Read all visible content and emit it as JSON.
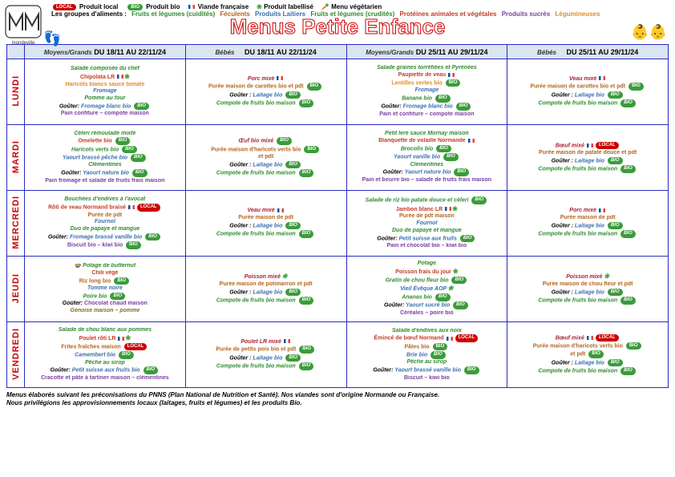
{
  "legend": {
    "local": "Produit local",
    "bio": "Produit bio",
    "viande": "Viande française",
    "labellise": "Produit labellisé",
    "vege": "Menu végétarien",
    "groups_label": "Les groupes d'aliments :",
    "g1": "Fruits et légumes (cuidités)",
    "g2": "Féculents",
    "g3": "Produits Laitiers",
    "g4": "Fruits et légumes (crudités)",
    "g5": "Protéines animales et végétales",
    "g6": "Produits sucrés",
    "g7": "Légumineuses"
  },
  "title": "Menus Petite Enfance",
  "colors": {
    "border": "#2a2ac0",
    "header_bg": "#dbe5f1",
    "day_text": "#c00",
    "grp1": "#2e8b2e",
    "grp2": "#b5651d",
    "grp3": "#3a6fb0",
    "grp4": "#2e8b2e",
    "grp5": "#c43b24",
    "grp6": "#7b3fa0",
    "grp7": "#e08a2c"
  },
  "headers": {
    "mg1": "Moyens/Grands",
    "d1": "DU 18/11 AU 22/11/24",
    "b1": "Bébés",
    "d2": "DU 18/11 AU 22/11/24",
    "mg2": "Moyens/Grands",
    "d3": "DU 25/11 AU 29/11/24",
    "b2": "Bébés",
    "d4": "DU 25/11 AU 29/11/24"
  },
  "days": [
    "LUNDI",
    "MARDI",
    "MERCREDI",
    "JEUDI",
    "VENDREDI"
  ],
  "cells": {
    "r0c0": [
      {
        "t": "Salade composée du chef",
        "cls": "c-green"
      },
      {
        "t": "Chipolata LR",
        "cls": "c-red",
        "icons": [
          "flag",
          "leaf"
        ]
      },
      {
        "t": "Haricots blancs sauce tomate",
        "cls": "c-orange"
      },
      {
        "t": "Fromage",
        "cls": "c-blue"
      },
      {
        "t": "Pomme au four",
        "cls": "c-green"
      },
      {
        "t": "Goûter: Fromage blanc bio",
        "cls": "c-blue",
        "pre": "gouter",
        "icons": [
          "bio"
        ]
      },
      {
        "t": "Pain confiture – compote maison",
        "cls": "c-purple"
      }
    ],
    "r0c1": [
      {
        "t": "Porc mixé",
        "cls": "c-dkred",
        "icons": [
          "flag"
        ]
      },
      {
        "t": "Purée maison de carottes bio et pdt",
        "cls": "c-brown",
        "icons": [
          "bio"
        ]
      },
      {
        "t": " ",
        "cls": ""
      },
      {
        "t": "Goûter : Laitage bio",
        "cls": "c-blue",
        "pre": "gouter",
        "icons": [
          "bio"
        ]
      },
      {
        "t": "Compote de fruits bio maison",
        "cls": "c-green",
        "icons": [
          "bio"
        ]
      }
    ],
    "r0c2": [
      {
        "t": "Salade graines torréfiées et Pyrénées",
        "cls": "c-green"
      },
      {
        "t": "Paupiette de veau",
        "cls": "c-red",
        "icons": [
          "flag"
        ]
      },
      {
        "t": "Lentilles vertes bio",
        "cls": "c-orange",
        "icons": [
          "bio"
        ]
      },
      {
        "t": "Fromage",
        "cls": "c-blue"
      },
      {
        "t": "Banane bio",
        "cls": "c-green",
        "icons": [
          "bio"
        ]
      },
      {
        "t": "Goûter: Fromage blanc bio",
        "cls": "c-blue",
        "pre": "gouter",
        "icons": [
          "bio"
        ]
      },
      {
        "t": "Pain et confiture – compote maison",
        "cls": "c-purple"
      }
    ],
    "r0c3": [
      {
        "t": "Veau mixé",
        "cls": "c-dkred",
        "icons": [
          "flag"
        ]
      },
      {
        "t": "Purée maison de carottes bio et pdt",
        "cls": "c-brown",
        "icons": [
          "bio"
        ]
      },
      {
        "t": " ",
        "cls": ""
      },
      {
        "t": "Goûter : Laitage bio",
        "cls": "c-blue",
        "pre": "gouter",
        "icons": [
          "bio"
        ]
      },
      {
        "t": "Compote de fruits bio maison",
        "cls": "c-green",
        "icons": [
          "bio"
        ]
      }
    ],
    "r1c0": [
      {
        "t": "Céleri rémoulade mixte",
        "cls": "c-green"
      },
      {
        "t": "Omelette bio",
        "cls": "c-red",
        "icons": [
          "bio"
        ]
      },
      {
        "t": "Haricots verts bio",
        "cls": "c-green",
        "icons": [
          "bio"
        ]
      },
      {
        "t": "Yaourt brassé pêche bio",
        "cls": "c-blue",
        "icons": [
          "bio"
        ]
      },
      {
        "t": "Clémentines",
        "cls": "c-green"
      },
      {
        "t": "Goûter: Yaourt nature bio",
        "cls": "c-blue",
        "pre": "gouter",
        "icons": [
          "bio"
        ]
      },
      {
        "t": "Pain fromage et salade de fruits frais maison",
        "cls": "c-purple"
      }
    ],
    "r1c1": [
      {
        "t": "Œuf bio mixé",
        "cls": "c-dkred",
        "icons": [
          "bio"
        ]
      },
      {
        "t": "Purée maison d'haricots verts bio",
        "cls": "c-brown",
        "icons": [
          "bio"
        ]
      },
      {
        "t": "et pdt",
        "cls": "c-brown"
      },
      {
        "t": "Goûter : Laitage bio",
        "cls": "c-blue",
        "pre": "gouter",
        "icons": [
          "bio"
        ]
      },
      {
        "t": "Compote de fruits bio maison",
        "cls": "c-green",
        "icons": [
          "bio"
        ]
      }
    ],
    "r1c2": [
      {
        "t": "Petit leré sauce Mornay maison",
        "cls": "c-green"
      },
      {
        "t": "Blanquette de volaille Normande",
        "cls": "c-red",
        "icons": [
          "flag"
        ]
      },
      {
        "t": "Brocolis bio",
        "cls": "c-green",
        "icons": [
          "bio"
        ]
      },
      {
        "t": "Yaourt vanille bio",
        "cls": "c-blue",
        "icons": [
          "bio"
        ]
      },
      {
        "t": "Clémentines",
        "cls": "c-green"
      },
      {
        "t": "Goûter: Yaourt nature bio",
        "cls": "c-blue",
        "pre": "gouter",
        "icons": [
          "bio"
        ]
      },
      {
        "t": "Pain et beurre bio – salade de fruits frais maison",
        "cls": "c-purple"
      }
    ],
    "r1c3": [
      {
        "t": "Bœuf mixé",
        "cls": "c-dkred",
        "icons": [
          "flag",
          "local"
        ]
      },
      {
        "t": "Purée maison de patate douce et pdt",
        "cls": "c-brown"
      },
      {
        "t": " ",
        "cls": ""
      },
      {
        "t": "Goûter : Laitage bio",
        "cls": "c-blue",
        "pre": "gouter",
        "icons": [
          "bio"
        ]
      },
      {
        "t": "Compote de fruits bio maison",
        "cls": "c-green",
        "icons": [
          "bio"
        ]
      }
    ],
    "r2c0": [
      {
        "t": "Bouchées d'endives à l'avocat",
        "cls": "c-green"
      },
      {
        "t": "Rôti de veau Normand braisé",
        "cls": "c-red",
        "icons": [
          "flag",
          "local"
        ]
      },
      {
        "t": "Purée de pdt",
        "cls": "c-brown"
      },
      {
        "t": "Fournol",
        "cls": "c-blue"
      },
      {
        "t": "Duo de papaye et mangue",
        "cls": "c-green"
      },
      {
        "t": "Goûter: Fromage brassé vanille bio",
        "cls": "c-blue",
        "pre": "gouter",
        "icons": [
          "bio"
        ]
      },
      {
        "t": "Biscuit bio – kiwi bio",
        "cls": "c-purple",
        "icons": [
          "bio"
        ]
      }
    ],
    "r2c1": [
      {
        "t": "Veau mixé",
        "cls": "c-dkred",
        "icons": [
          "flag"
        ]
      },
      {
        "t": "Purée maison de pdt",
        "cls": "c-brown"
      },
      {
        "t": " ",
        "cls": ""
      },
      {
        "t": "Goûter : Laitage bio",
        "cls": "c-blue",
        "pre": "gouter",
        "icons": [
          "bio"
        ]
      },
      {
        "t": "Compote de fruits bio maison",
        "cls": "c-green",
        "icons": [
          "bio"
        ]
      }
    ],
    "r2c2": [
      {
        "t": "Salade de riz bio patate douce et céleri",
        "cls": "c-green",
        "icons": [
          "bio"
        ]
      },
      {
        "t": "Jambon blanc LR",
        "cls": "c-red",
        "icons": [
          "flag",
          "leaf"
        ]
      },
      {
        "t": "Purée de pdt maison",
        "cls": "c-brown"
      },
      {
        "t": "Fournol",
        "cls": "c-blue"
      },
      {
        "t": "Duo de papaye et mangue",
        "cls": "c-green"
      },
      {
        "t": "Goûter: Petit suisse aux fruits",
        "cls": "c-blue",
        "pre": "gouter",
        "icons": [
          "bio"
        ]
      },
      {
        "t": "Pain et chocolat bio – kiwi bio",
        "cls": "c-purple"
      }
    ],
    "r2c3": [
      {
        "t": "Porc mixé",
        "cls": "c-dkred",
        "icons": [
          "flag"
        ]
      },
      {
        "t": "Purée maison de pdt",
        "cls": "c-brown"
      },
      {
        "t": " ",
        "cls": ""
      },
      {
        "t": "Goûter : Laitage bio",
        "cls": "c-blue",
        "pre": "gouter",
        "icons": [
          "bio"
        ]
      },
      {
        "t": "Compote de fruits bio maison",
        "cls": "c-green",
        "icons": [
          "bio"
        ]
      }
    ],
    "r3c0": [
      {
        "t": "🍲 Potage de butternut",
        "cls": "c-green"
      },
      {
        "t": "Chili végé",
        "cls": "c-red"
      },
      {
        "t": "Riz long bio",
        "cls": "c-brown",
        "icons": [
          "bio"
        ]
      },
      {
        "t": "Tomme noire",
        "cls": "c-blue"
      },
      {
        "t": "Poire bio",
        "cls": "c-green",
        "icons": [
          "bio"
        ]
      },
      {
        "t": "Goûter: Chocolat chaud maison",
        "cls": "c-purple",
        "pre": "gouter"
      },
      {
        "t": "Génoise maison – pomme",
        "cls": "c-dkgold"
      }
    ],
    "r3c1": [
      {
        "t": "Poisson mixé",
        "cls": "c-dkred",
        "icons": [
          "leaf"
        ]
      },
      {
        "t": "Purée maison de potimarron et pdt",
        "cls": "c-brown"
      },
      {
        "t": " ",
        "cls": ""
      },
      {
        "t": "Goûter : Laitage bio",
        "cls": "c-blue",
        "pre": "gouter",
        "icons": [
          "bio"
        ]
      },
      {
        "t": "Compote de fruits bio maison",
        "cls": "c-green",
        "icons": [
          "bio"
        ]
      }
    ],
    "r3c2": [
      {
        "t": "Potage",
        "cls": "c-green"
      },
      {
        "t": "Poisson frais du jour",
        "cls": "c-red",
        "icons": [
          "leaf"
        ]
      },
      {
        "t": "Gratin de chou fleur bio",
        "cls": "c-green",
        "icons": [
          "bio"
        ]
      },
      {
        "t": "Vieil Évêque AOP",
        "cls": "c-blue",
        "icons": [
          "leaf"
        ]
      },
      {
        "t": "Ananas bio",
        "cls": "c-green",
        "icons": [
          "bio"
        ]
      },
      {
        "t": "Goûter: Yaourt sucré bio",
        "cls": "c-blue",
        "pre": "gouter",
        "icons": [
          "bio"
        ]
      },
      {
        "t": "Céréales – poire bio",
        "cls": "c-purple"
      }
    ],
    "r3c3": [
      {
        "t": "Poisson mixé",
        "cls": "c-dkred",
        "icons": [
          "leaf"
        ]
      },
      {
        "t": "Purée maison de chou fleur et pdt",
        "cls": "c-brown"
      },
      {
        "t": " ",
        "cls": ""
      },
      {
        "t": "Goûter : Laitage bio",
        "cls": "c-blue",
        "pre": "gouter",
        "icons": [
          "bio"
        ]
      },
      {
        "t": "Compote de fruits bio maison",
        "cls": "c-green",
        "icons": [
          "bio"
        ]
      }
    ],
    "r4c0": [
      {
        "t": "Salade de chou blanc aux pommes",
        "cls": "c-green"
      },
      {
        "t": "Poulet rôti LR",
        "cls": "c-red",
        "icons": [
          "flag",
          "leaf"
        ]
      },
      {
        "t": "Frites fraîches maison",
        "cls": "c-brown",
        "icons": [
          "local"
        ]
      },
      {
        "t": "Camembert bio",
        "cls": "c-blue",
        "icons": [
          "bio"
        ]
      },
      {
        "t": "Pêche au sirop",
        "cls": "c-green"
      },
      {
        "t": "Goûter: Petit suisse aux fruits bio",
        "cls": "c-blue",
        "pre": "gouter",
        "icons": [
          "bio"
        ]
      },
      {
        "t": "Cracotte et pâte à tartiner maison – clémentines",
        "cls": "c-purple"
      }
    ],
    "r4c1": [
      {
        "t": "Poulet LR mixé",
        "cls": "c-dkred",
        "icons": [
          "flag"
        ]
      },
      {
        "t": "Purée de petits pois bio et pdt",
        "cls": "c-brown",
        "icons": [
          "bio"
        ]
      },
      {
        "t": " ",
        "cls": ""
      },
      {
        "t": "Goûter : Laitage bio",
        "cls": "c-blue",
        "pre": "gouter",
        "icons": [
          "bio"
        ]
      },
      {
        "t": "Compote de fruits bio maison",
        "cls": "c-green",
        "icons": [
          "bio"
        ]
      }
    ],
    "r4c2": [
      {
        "t": "Salade d'endives aux noix",
        "cls": "c-green"
      },
      {
        "t": "Émincé de bœuf Normand",
        "cls": "c-red",
        "icons": [
          "flag",
          "local"
        ]
      },
      {
        "t": "Pâtes bio",
        "cls": "c-brown",
        "icons": [
          "bio"
        ]
      },
      {
        "t": "Brie bio",
        "cls": "c-blue",
        "icons": [
          "bio"
        ]
      },
      {
        "t": "Pêche au sirop",
        "cls": "c-green"
      },
      {
        "t": "Goûter: Yaourt brassé vanille bio",
        "cls": "c-blue",
        "pre": "gouter",
        "icons": [
          "bio"
        ]
      },
      {
        "t": "Biscuit – kiwi bio",
        "cls": "c-purple"
      }
    ],
    "r4c3": [
      {
        "t": "Bœuf mixé",
        "cls": "c-dkred",
        "icons": [
          "flag",
          "local"
        ]
      },
      {
        "t": "Purée maison d'haricots verts bio",
        "cls": "c-brown",
        "icons": [
          "bio"
        ]
      },
      {
        "t": "et pdt",
        "cls": "c-brown",
        "icons": [
          "bio"
        ]
      },
      {
        "t": "Goûter : Laitage bio",
        "cls": "c-blue",
        "pre": "gouter",
        "icons": [
          "bio"
        ]
      },
      {
        "t": "Compote de fruits bio maison",
        "cls": "c-green",
        "icons": [
          "bio"
        ]
      }
    ]
  },
  "footer": {
    "l1": "Menus élaborés suivant les préconisations du PNNS (Plan National de Nutrition et Santé). Nos viandes sont d'origine Normande ou Française.",
    "l2": "Nous privilégions les approvisionnements locaux (laitages, fruits et légumes) et les produits Bio."
  }
}
